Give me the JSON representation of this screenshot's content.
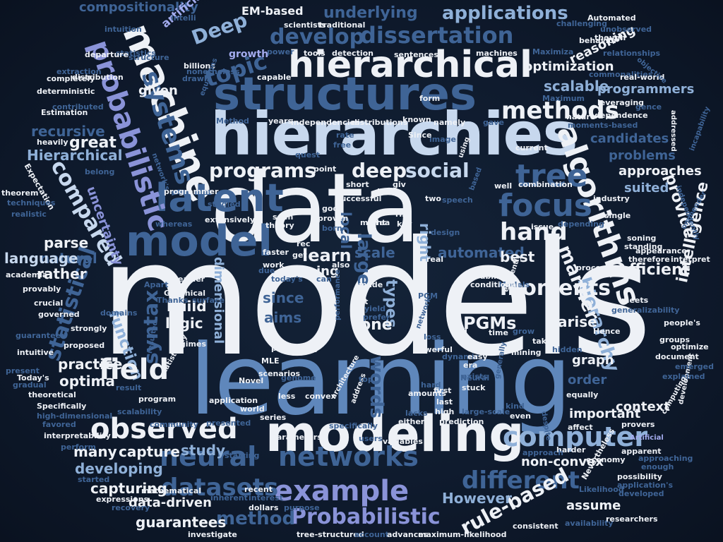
{
  "palette": {
    "white": "#eef1f6",
    "pale_blue": "#c7d8ee",
    "light_blue": "#8fb0d8",
    "mid_blue": "#5f87bb",
    "steel_blue": "#3f6496",
    "dark_blue": "#2c4a76",
    "lavender": "#8a93d8",
    "light_lavender": "#a4acef",
    "background": "#0f1b2e"
  },
  "words": {
    "w1": "models",
    "w2": "learning",
    "w3": "data",
    "w4": "hierarchies",
    "w5": "structures",
    "w6": "modeling",
    "w7": "hierarchical",
    "w8": "machine",
    "w9": "model",
    "w10": "neural",
    "w11": "networks",
    "w12": "latent",
    "w13": "probabilistic",
    "w14": "systems",
    "w15": "algorithms",
    "w16": "tree",
    "w17": "focus",
    "w18": "example",
    "w19": "Probabilistic",
    "w20": "observed",
    "w21": "field",
    "w22": "computer",
    "w23": "different",
    "w24": "methods",
    "w25": "datasets",
    "w26": "rule-based",
    "w27": "method",
    "w28": "dissertation",
    "w29": "develop",
    "w30": "applications",
    "w31": "underlying",
    "w32": "topic",
    "w33": "Deep",
    "w34": "compared",
    "w35": "statistical",
    "w36": "programs",
    "w37": "deep",
    "w38": "social",
    "w39": "hand",
    "w40": "moments",
    "w41": "hierarchy",
    "w42": "manner",
    "w43": "large",
    "w44": "words",
    "w45": "PGMs",
    "w46": "syntax",
    "w47": "optima",
    "w48": "practice",
    "w49": "capture",
    "w50": "many",
    "w51": "study",
    "w52": "developing",
    "w53": "capturing",
    "w54": "guarantees",
    "w55": "data-driven",
    "w56": "However",
    "w57": "non-convex",
    "w58": "context",
    "w59": "important",
    "w60": "graph",
    "w61": "order",
    "w62": "arise",
    "w63": "efficient",
    "w64": "best",
    "w65": "one",
    "w66": "types",
    "w67": "aims",
    "w68": "since",
    "w69": "logic",
    "w70": "build",
    "w71": "function",
    "w72": "dimensional",
    "w73": "uncertainty",
    "w74": "parse",
    "w75": "natural",
    "w76": "language",
    "w77": "rather",
    "w78": "recursive",
    "w79": "great",
    "w80": "Hierarchical",
    "w81": "given",
    "w82": "scalable",
    "w83": "programmers",
    "w84": "optimization",
    "w85": "reasoning",
    "w86": "candidates",
    "w87": "problems",
    "w88": "approaches",
    "w89": "suited",
    "w90": "provide",
    "w91": "intelligence",
    "w92": "automated",
    "w93": "scale",
    "w94": "learn",
    "w95": "right",
    "w96": "local",
    "w97": "EM-based",
    "w98": "compositionality",
    "w99": "artificial",
    "w100": "growth",
    "w101": "assume",
    "w102": "Artificial",
    "w103": "Maximiza",
    "w104": "machines",
    "w105": "sentences",
    "w106": "detection",
    "w107": "tools",
    "w108": "traditional",
    "w109": "scientists",
    "w110": "billions",
    "w111": "intuition",
    "w112": "statistics",
    "w113": "departure",
    "w114": "distribution",
    "w115": "extraction",
    "w116": "completely",
    "w117": "deterministic",
    "w118": "contributed",
    "w119": "Estimation",
    "w120": "heavily",
    "w121": "equations",
    "w122": "nonetheless",
    "w123": "capable",
    "w124": "independencies",
    "w125": "distributions",
    "w126": "known",
    "w127": "namely",
    "w128": "relationships",
    "w129": "commonalities",
    "w130": "real-world",
    "w131": "leveraging",
    "w132": "Maximum",
    "w133": "nature",
    "w134": "dependence",
    "w135": "moments-based",
    "w136": "behavior",
    "w137": "challenging",
    "w138": "unobserved",
    "w139": "Automated",
    "w140": "objective",
    "w141": "Expectation",
    "w142": "techniques",
    "w143": "realistic",
    "w144": "theorem",
    "w145": "academia",
    "w146": "provably",
    "w147": "crucial",
    "w148": "guaranteed",
    "w149": "governed",
    "w150": "intuitive",
    "w151": "present",
    "w152": "gradual",
    "w153": "theoretical",
    "w154": "Specifically",
    "w155": "high-dimensional",
    "w156": "favored",
    "w157": "interpretability",
    "w158": "perform",
    "w159": "started",
    "w160": "expressions",
    "w161": "recovery",
    "w162": "mathematical",
    "w163": "inherent",
    "w164": "investigate",
    "w165": "recent",
    "w166": "interest",
    "w167": "dollars",
    "w168": "purpose",
    "w169": "tree-structured",
    "w170": "account",
    "w171": "advances",
    "w172": "maximum-likelihood",
    "w173": "consistent",
    "w174": "researchers",
    "w175": "developed",
    "w176": "application's",
    "w177": "Likelihood",
    "w178": "Nevertheless",
    "w179": "possibility",
    "w180": "availability",
    "w181": "economy",
    "w182": "apparent",
    "w183": "enough",
    "w184": "approaching",
    "w185": "development",
    "w186": "Today's",
    "w187": "statistically",
    "w188": "Graphical",
    "w189": "Apart",
    "w190": "Thanks",
    "w191": "domains",
    "w192": "strongly",
    "w193": "proposed",
    "w194": "program",
    "w195": "result",
    "w196": "community",
    "w197": "scalability",
    "w198": "presented",
    "w199": "parameters",
    "w200": "users",
    "w201": "variables",
    "w202": "series",
    "w203": "world",
    "w204": "application",
    "w205": "convex",
    "w206": "scenarios",
    "w207": "Novel",
    "w208": "MLE",
    "w209": "genome",
    "w210": "probability",
    "w211": "performance",
    "w212": "yield",
    "w213": "prefer",
    "w214": "fit",
    "w215": "today's",
    "w216": "made",
    "w217": "work",
    "w218": "faster",
    "w219": "rec",
    "w220": "get",
    "w221": "born",
    "w222": "proven",
    "w223": "good",
    "w224": "successful",
    "w225": "theory",
    "w226": "seen",
    "w227": "extensively",
    "w228": "whereas",
    "w229": "studied",
    "w230": "programmer",
    "w231": "network's",
    "w232": "belong",
    "w233": "Method",
    "w234": "years",
    "w235": "free",
    "w236": "rate",
    "w237": "quest",
    "w238": "giv",
    "w239": "derive",
    "w240": "short",
    "w241": "two",
    "w242": "rise",
    "w243": "key",
    "w244": "might",
    "w245": "also",
    "w246": "speech",
    "w247": "design",
    "w248": "issue",
    "w249": "depending",
    "w250": "single",
    "w251": "industry",
    "w252": "combination",
    "w253": "using",
    "w254": "image",
    "w255": "Since",
    "w256": "current",
    "w257": "well",
    "w258": "based",
    "w259": "processing",
    "w260": "standing",
    "w261": "appearance",
    "w262": "therefore",
    "w263": "interpret",
    "w264": "independently",
    "w265": "ommender",
    "w266": "incapability",
    "w267": "addressed",
    "w268": "gence",
    "w269": "meets",
    "w270": "generalizability",
    "w271": "people's",
    "w272": "groups",
    "w273": "optimize",
    "w274": "document",
    "w275": "emerged",
    "w276": "explained",
    "w277": "computing",
    "w278": "provers",
    "w279": "equally",
    "w280": "despite",
    "w281": "affect",
    "w282": "harder",
    "w283": "approach",
    "w284": "hidden",
    "w285": "mining",
    "w286": "take",
    "w287": "grow",
    "w288": "Models",
    "w289": "efficiently",
    "w290": "time",
    "w291": "Hence",
    "w292": "find",
    "w293": "dynamic",
    "w294": "era",
    "w295": "exists",
    "w296": "first",
    "w297": "last",
    "w298": "high",
    "w299": "stuck",
    "w300": "Neural",
    "w301": "kind",
    "w302": "generally",
    "w303": "even",
    "w304": "large-scale",
    "w305": "prediction",
    "w306": "either",
    "w307": "lacks",
    "w308": "specifically",
    "w309": "address",
    "w310": "architecture",
    "w311": "top",
    "w312": "hard",
    "w313": "less",
    "w314": "amounts",
    "w315": "easy",
    "w316": "powerful",
    "w317": "loss",
    "w318": "network",
    "w319": "conditional",
    "w320": "ability",
    "w321": "PGM",
    "w322": "can",
    "w323": "easier",
    "w324": "surface",
    "w325": "resulted",
    "w326": "due",
    "w327": "regimes",
    "w328": "starting",
    "w329": "real",
    "w330": "point",
    "w331": "soning",
    "w332": "gave",
    "w333": "form",
    "w334": "rea",
    "w335": "drawn",
    "w336": "power",
    "w337": "intelli",
    "w338": "structure",
    "w339": "though",
    "w340": "ing"
  }
}
